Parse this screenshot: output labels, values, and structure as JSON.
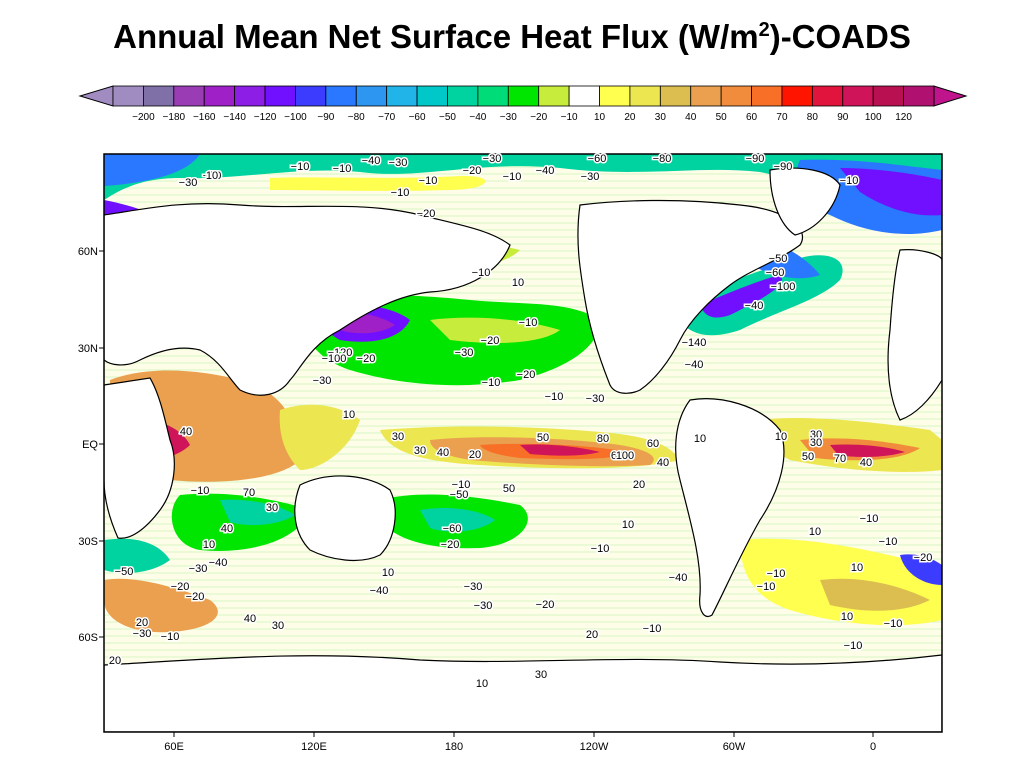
{
  "title": {
    "main": "Annual Mean Net Surface Heat Flux (W/m",
    "sup": "2",
    "suffix": ")-COADS"
  },
  "colorbar": {
    "labels": [
      "-200",
      "-180",
      "-160",
      "-140",
      "-120",
      "-100",
      "-90",
      "-80",
      "-70",
      "-60",
      "-50",
      "-40",
      "-30",
      "-20",
      "-10",
      "10",
      "20",
      "30",
      "40",
      "50",
      "60",
      "70",
      "80",
      "90",
      "100",
      "120"
    ],
    "colors": [
      "#a08cc0",
      "#8070a8",
      "#9a3cb4",
      "#a020c8",
      "#8c1ee6",
      "#7010ff",
      "#3c3cff",
      "#2a78ff",
      "#2c96f0",
      "#20b4e8",
      "#00c8c8",
      "#00d2a0",
      "#00dc78",
      "#00e600",
      "#c8ec3c",
      "#ffffff",
      "#ffff50",
      "#ece650",
      "#dcbe50",
      "#eaa04e",
      "#f08c3c",
      "#f87028",
      "#ff1400",
      "#e0143c",
      "#d0145a",
      "#b81050",
      "#b01070"
    ],
    "under_color": "#a08cc0",
    "over_color": "#c0148c"
  },
  "map": {
    "lat_labels": [
      "60N",
      "30N",
      "EQ",
      "30S",
      "60S"
    ],
    "lon_labels": [
      "60E",
      "120E",
      "180",
      "120W",
      "60W",
      "0"
    ],
    "contour_labels": [
      "-40",
      "-50",
      "-20",
      "-10",
      "-40",
      "-30",
      "-30",
      "-20",
      "-40",
      "-10",
      "-60",
      "-30",
      "-80",
      "-90",
      "-90",
      "-10",
      "-10",
      "-10",
      "-20",
      "-50",
      "-60",
      "-100",
      "-10",
      "10",
      "-40",
      "-10",
      "-140",
      "-40",
      "-120",
      "-100",
      "-20",
      "-30",
      "-20",
      "-10",
      "-20",
      "-30",
      "-10",
      "-30",
      "10",
      "40",
      "30",
      "30",
      "40",
      "20",
      "-10",
      "-50",
      "50",
      "80",
      "60",
      "10",
      "10",
      "30",
      "60",
      "40",
      "50",
      "30",
      "100",
      "40",
      "70",
      "50",
      "70",
      "30",
      "40",
      "10",
      "-40",
      "-50",
      "-30",
      "-20",
      "-10",
      "-60",
      "-20",
      "-30",
      "10",
      "-40",
      "-30",
      "-20",
      "-40",
      "-10",
      "-10",
      "10",
      "-10",
      "-20",
      "-10",
      "10",
      "20",
      "-30",
      "-10",
      "40",
      "30",
      "20",
      "-10",
      "10",
      "-10",
      "-10",
      "20",
      "30",
      "10",
      "-20",
      "-10",
      "10",
      "20",
      "-30",
      "10",
      "-10"
    ]
  }
}
